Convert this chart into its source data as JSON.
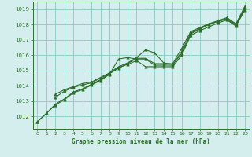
{
  "background_color": "#d4eeee",
  "grid_color": "#7fbfbf",
  "line_color": "#2d6e2d",
  "xlabel": "Graphe pression niveau de la mer (hPa)",
  "xlim": [
    -0.5,
    23.5
  ],
  "ylim": [
    1011.2,
    1019.5
  ],
  "yticks": [
    1012,
    1013,
    1014,
    1015,
    1016,
    1017,
    1018,
    1019
  ],
  "xticks": [
    0,
    1,
    2,
    3,
    4,
    5,
    6,
    7,
    8,
    9,
    10,
    11,
    12,
    13,
    14,
    15,
    16,
    17,
    18,
    19,
    20,
    21,
    22,
    23
  ],
  "series": [
    {
      "x": [
        0,
        1,
        2,
        3,
        4,
        5,
        6,
        7,
        8,
        9,
        10,
        11,
        12,
        13,
        14,
        15,
        16,
        17,
        18,
        19,
        20,
        21,
        22,
        23
      ],
      "y": [
        1011.65,
        1012.2,
        1012.75,
        1013.1,
        1013.55,
        1013.75,
        1014.05,
        1014.35,
        1014.75,
        1015.75,
        1015.85,
        1015.75,
        1015.75,
        1015.35,
        1015.35,
        1015.35,
        1016.25,
        1017.45,
        1017.75,
        1018.05,
        1018.25,
        1018.45,
        1018.05,
        1019.2
      ]
    },
    {
      "x": [
        0,
        1,
        2,
        3,
        4,
        5,
        6,
        7,
        8,
        9,
        10,
        11,
        12,
        13,
        14,
        15,
        16,
        17,
        18,
        19,
        20,
        21,
        22,
        23
      ],
      "y": [
        1011.65,
        1012.2,
        1012.8,
        1013.15,
        1013.6,
        1013.8,
        1014.1,
        1014.4,
        1014.8,
        1015.15,
        1015.45,
        1015.8,
        1015.8,
        1015.45,
        1015.45,
        1015.45,
        1016.45,
        1017.55,
        1017.8,
        1018.05,
        1018.2,
        1018.4,
        1018.0,
        1019.1
      ]
    },
    {
      "x": [
        2,
        3,
        4,
        5,
        6,
        7,
        8,
        9,
        10,
        11,
        12,
        13,
        14,
        15,
        16,
        17,
        18,
        19,
        20,
        21,
        22,
        23
      ],
      "y": [
        1013.45,
        1013.75,
        1013.95,
        1014.15,
        1014.25,
        1014.55,
        1014.85,
        1015.25,
        1015.5,
        1015.85,
        1016.35,
        1016.15,
        1015.5,
        1015.4,
        1016.1,
        1017.4,
        1017.7,
        1018.0,
        1018.2,
        1018.35,
        1017.95,
        1019.0
      ]
    },
    {
      "x": [
        2,
        3,
        4,
        5,
        6,
        7,
        8,
        9,
        10,
        11,
        12,
        13,
        14,
        15,
        16,
        17,
        18,
        19,
        20,
        21,
        22,
        23
      ],
      "y": [
        1013.25,
        1013.65,
        1013.9,
        1014.05,
        1014.2,
        1014.5,
        1014.8,
        1015.2,
        1015.4,
        1015.65,
        1015.25,
        1015.25,
        1015.25,
        1015.25,
        1016.0,
        1017.3,
        1017.6,
        1017.85,
        1018.1,
        1018.3,
        1017.9,
        1018.95
      ]
    }
  ]
}
